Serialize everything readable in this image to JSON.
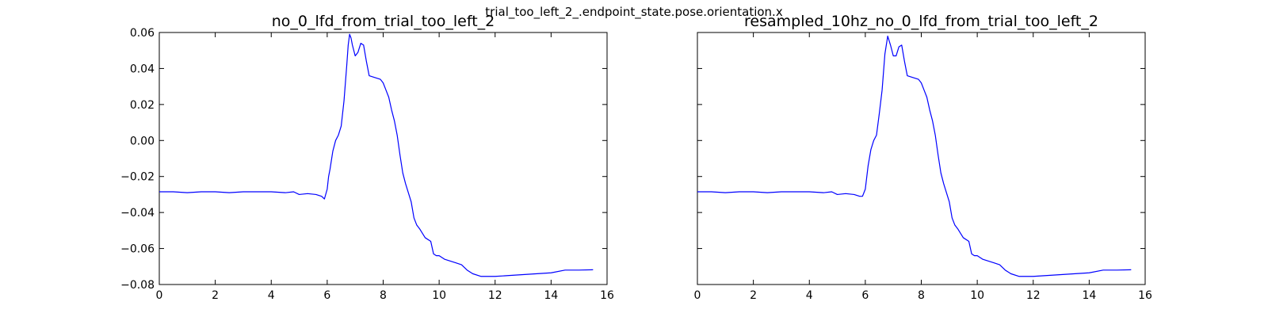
{
  "figure": {
    "suptitle": "trial_too_left_2_.endpoint_state.pose.orientation.x",
    "line_color": "#0000ff"
  },
  "chart_data": [
    {
      "type": "line",
      "title": "no_0_lfd_from_trial_too_left_2",
      "xlabel": "",
      "ylabel": "",
      "xlim": [
        0,
        16
      ],
      "ylim": [
        -0.08,
        0.06
      ],
      "xticks": [
        0,
        2,
        4,
        6,
        8,
        10,
        12,
        14,
        16
      ],
      "yticks": [
        0.06,
        0.04,
        0.02,
        0.0,
        -0.02,
        -0.04,
        -0.06,
        -0.08
      ],
      "xtick_labels": [
        "0",
        "2",
        "4",
        "6",
        "8",
        "10",
        "12",
        "14",
        "16"
      ],
      "ytick_labels": [
        "0.06",
        "0.04",
        "0.02",
        "0.00",
        "−0.02",
        "−0.04",
        "−0.06",
        "−0.08"
      ],
      "show_ytick_labels": true,
      "grid": false,
      "series": [
        {
          "color": "#0000ff",
          "x": [
            0,
            0.5,
            1,
            1.5,
            2,
            2.5,
            3,
            3.5,
            4,
            4.5,
            4.8,
            5.0,
            5.3,
            5.6,
            5.8,
            5.9,
            6.0,
            6.05,
            6.1,
            6.2,
            6.3,
            6.4,
            6.5,
            6.6,
            6.7,
            6.75,
            6.8,
            6.85,
            6.9,
            7.0,
            7.1,
            7.2,
            7.3,
            7.4,
            7.5,
            7.7,
            7.9,
            8.0,
            8.1,
            8.2,
            8.3,
            8.4,
            8.5,
            8.6,
            8.7,
            8.8,
            8.9,
            9.0,
            9.1,
            9.2,
            9.3,
            9.5,
            9.7,
            9.8,
            9.9,
            10.0,
            10.2,
            10.4,
            10.6,
            10.8,
            11.0,
            11.2,
            11.5,
            12.0,
            12.5,
            13.0,
            13.5,
            14.0,
            14.5,
            15.0,
            15.5
          ],
          "y": [
            -0.0285,
            -0.0285,
            -0.029,
            -0.0285,
            -0.0285,
            -0.029,
            -0.0285,
            -0.0285,
            -0.0285,
            -0.029,
            -0.0285,
            -0.03,
            -0.0295,
            -0.03,
            -0.031,
            -0.0325,
            -0.027,
            -0.02,
            -0.016,
            -0.006,
            0.0,
            0.003,
            0.008,
            0.022,
            0.042,
            0.053,
            0.059,
            0.057,
            0.053,
            0.047,
            0.049,
            0.054,
            0.053,
            0.044,
            0.036,
            0.035,
            0.034,
            0.032,
            0.028,
            0.024,
            0.017,
            0.011,
            0.003,
            -0.008,
            -0.018,
            -0.024,
            -0.029,
            -0.034,
            -0.043,
            -0.047,
            -0.049,
            -0.054,
            -0.056,
            -0.063,
            -0.064,
            -0.064,
            -0.066,
            -0.067,
            -0.068,
            -0.069,
            -0.072,
            -0.074,
            -0.0755,
            -0.0755,
            -0.075,
            -0.0745,
            -0.074,
            -0.0735,
            -0.072,
            -0.072,
            -0.0718
          ]
        }
      ]
    },
    {
      "type": "line",
      "title": "resampled_10hz_no_0_lfd_from_trial_too_left_2",
      "xlabel": "",
      "ylabel": "",
      "xlim": [
        0,
        16
      ],
      "ylim": [
        -0.08,
        0.06
      ],
      "xticks": [
        0,
        2,
        4,
        6,
        8,
        10,
        12,
        14,
        16
      ],
      "yticks": [
        0.06,
        0.04,
        0.02,
        0.0,
        -0.02,
        -0.04,
        -0.06,
        -0.08
      ],
      "xtick_labels": [
        "0",
        "2",
        "4",
        "6",
        "8",
        "10",
        "12",
        "14",
        "16"
      ],
      "ytick_labels": [],
      "show_ytick_labels": false,
      "grid": false,
      "series": [
        {
          "color": "#0000ff",
          "x": [
            0,
            0.5,
            1,
            1.5,
            2,
            2.5,
            3,
            3.5,
            4,
            4.5,
            4.8,
            5.0,
            5.3,
            5.6,
            5.8,
            5.9,
            6.0,
            6.1,
            6.2,
            6.3,
            6.4,
            6.5,
            6.6,
            6.7,
            6.8,
            6.9,
            7.0,
            7.1,
            7.2,
            7.3,
            7.4,
            7.5,
            7.7,
            7.9,
            8.0,
            8.1,
            8.2,
            8.3,
            8.4,
            8.5,
            8.6,
            8.7,
            8.8,
            8.9,
            9.0,
            9.1,
            9.2,
            9.3,
            9.5,
            9.7,
            9.8,
            9.9,
            10.0,
            10.2,
            10.4,
            10.6,
            10.8,
            11.0,
            11.2,
            11.5,
            12.0,
            12.5,
            13.0,
            13.5,
            14.0,
            14.5,
            15.0,
            15.5
          ],
          "y": [
            -0.0285,
            -0.0285,
            -0.029,
            -0.0285,
            -0.0285,
            -0.029,
            -0.0285,
            -0.0285,
            -0.0285,
            -0.029,
            -0.0285,
            -0.03,
            -0.0295,
            -0.03,
            -0.031,
            -0.031,
            -0.027,
            -0.014,
            -0.005,
            0.0,
            0.003,
            0.015,
            0.028,
            0.048,
            0.058,
            0.053,
            0.047,
            0.047,
            0.052,
            0.053,
            0.044,
            0.036,
            0.035,
            0.034,
            0.032,
            0.028,
            0.024,
            0.017,
            0.011,
            0.003,
            -0.008,
            -0.018,
            -0.024,
            -0.029,
            -0.034,
            -0.043,
            -0.047,
            -0.049,
            -0.054,
            -0.056,
            -0.063,
            -0.064,
            -0.064,
            -0.066,
            -0.067,
            -0.068,
            -0.069,
            -0.072,
            -0.074,
            -0.0755,
            -0.0755,
            -0.075,
            -0.0745,
            -0.074,
            -0.0735,
            -0.072,
            -0.072,
            -0.0718
          ]
        }
      ]
    }
  ]
}
